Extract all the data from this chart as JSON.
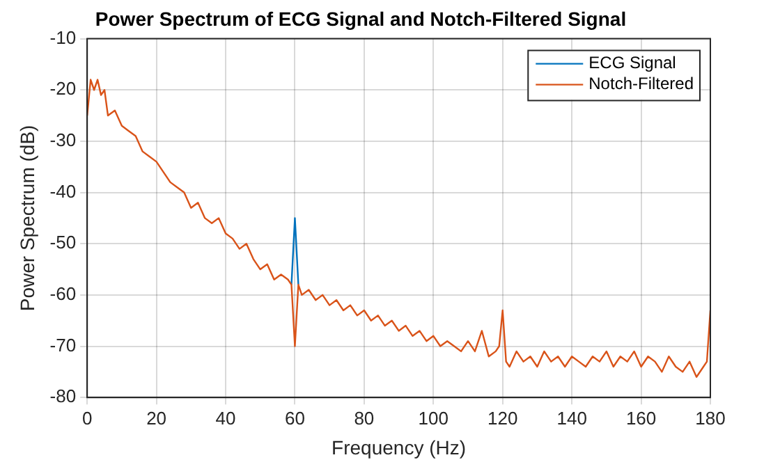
{
  "chart_data": {
    "type": "line",
    "title": "Power Spectrum of ECG Signal and Notch-Filtered Signal",
    "xlabel": "Frequency (Hz)",
    "ylabel": "Power Spectrum (dB)",
    "x": [
      0,
      1,
      2,
      3,
      4,
      5,
      6,
      8,
      10,
      12,
      14,
      16,
      18,
      20,
      22,
      24,
      26,
      28,
      30,
      32,
      34,
      36,
      38,
      40,
      42,
      44,
      46,
      48,
      50,
      52,
      54,
      56,
      58,
      59,
      60,
      61,
      62,
      64,
      66,
      68,
      70,
      72,
      74,
      76,
      78,
      80,
      82,
      84,
      86,
      88,
      90,
      92,
      94,
      96,
      98,
      100,
      102,
      104,
      106,
      108,
      110,
      112,
      114,
      116,
      118,
      119,
      120,
      121,
      122,
      124,
      126,
      128,
      130,
      132,
      134,
      136,
      138,
      140,
      142,
      144,
      146,
      148,
      150,
      152,
      154,
      156,
      158,
      160,
      162,
      164,
      166,
      168,
      170,
      172,
      174,
      176,
      178,
      179,
      180
    ],
    "series": [
      {
        "name": "ECG Signal",
        "color": "#0072bd",
        "values": [
          null,
          null,
          null,
          null,
          null,
          null,
          null,
          null,
          null,
          null,
          null,
          null,
          null,
          null,
          null,
          null,
          null,
          null,
          null,
          null,
          null,
          null,
          null,
          null,
          null,
          null,
          null,
          null,
          null,
          null,
          null,
          null,
          null,
          -58,
          -45,
          -58,
          null,
          null,
          null,
          null,
          null,
          null,
          null,
          null,
          null,
          null,
          null,
          null,
          null,
          null,
          null,
          null,
          null,
          null,
          null,
          null,
          null,
          null,
          null,
          null,
          null,
          null,
          null,
          null,
          null,
          null,
          null,
          null,
          null,
          null,
          null,
          null,
          null,
          null,
          null,
          null,
          null,
          null,
          null,
          null,
          null,
          null,
          null,
          null,
          null,
          null,
          null,
          null,
          null,
          null,
          null,
          null,
          null,
          null,
          null,
          null,
          null,
          null,
          null
        ]
      },
      {
        "name": "Notch-Filtered",
        "color": "#d95319",
        "values": [
          -25,
          -18,
          -20,
          -18,
          -21,
          -20,
          -25,
          -24,
          -27,
          -28,
          -29,
          -32,
          -33,
          -34,
          -36,
          -38,
          -39,
          -40,
          -43,
          -42,
          -45,
          -46,
          -45,
          -48,
          -49,
          -51,
          -50,
          -53,
          -55,
          -54,
          -57,
          -56,
          -57,
          -58,
          -70,
          -58,
          -60,
          -59,
          -61,
          -60,
          -62,
          -61,
          -63,
          -62,
          -64,
          -63,
          -65,
          -64,
          -66,
          -65,
          -67,
          -66,
          -68,
          -67,
          -69,
          -68,
          -70,
          -69,
          -70,
          -71,
          -69,
          -71,
          -67,
          -72,
          -71,
          -70,
          -63,
          -73,
          -74,
          -71,
          -73,
          -72,
          -74,
          -71,
          -73,
          -72,
          -74,
          -72,
          -73,
          -74,
          -72,
          -73,
          -71,
          -74,
          -72,
          -73,
          -71,
          -74,
          -72,
          -73,
          -75,
          -72,
          -74,
          -75,
          -73,
          -76,
          -74,
          -73,
          -63
        ]
      }
    ],
    "xlim": [
      0,
      180
    ],
    "xticks": [
      0,
      20,
      40,
      60,
      80,
      100,
      120,
      140,
      160,
      180
    ],
    "ylim": [
      -80,
      -10
    ],
    "yticks": [
      -80,
      -70,
      -60,
      -50,
      -40,
      -30,
      -20,
      -10
    ],
    "grid": true,
    "legend": "top right",
    "marker": "none",
    "line_style": "solid"
  }
}
